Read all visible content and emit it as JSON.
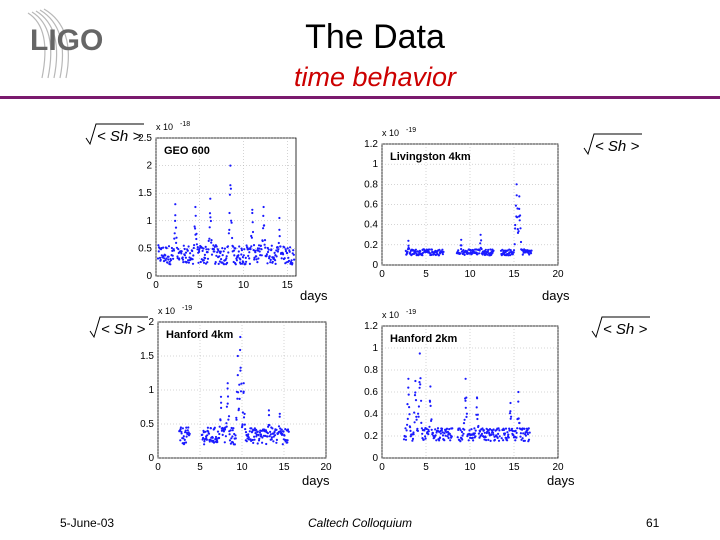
{
  "slide": {
    "logo_text": "LIGO",
    "title": "The Data",
    "subtitle": "time behavior",
    "footer_date": "5-June-03",
    "footer_center": "Caltech Colloquium",
    "footer_page": "61",
    "formula_label": "√< Sh >"
  },
  "colors": {
    "series": "#1a1aff",
    "accent_rule": "#7a1a6e",
    "subtitle": "#cc0000"
  },
  "chart_data": [
    {
      "type": "scatter",
      "title": "GEO 600",
      "xlabel": "days",
      "ylabel": "√< Sh >",
      "exponent": "x 10",
      "exponent_power": "-18",
      "xlim": [
        0,
        16
      ],
      "ylim": [
        0,
        2.5
      ],
      "xticks": [
        "0",
        "5",
        "10",
        "15"
      ],
      "yticks": [
        "0",
        "0.5",
        "1",
        "1.5",
        "2",
        "2.5"
      ],
      "series": [
        {
          "name": "GEO 600",
          "segments": [
            [
              0.2,
              15.8
            ]
          ],
          "base": 0.35,
          "spread": 0.35,
          "spikes": [
            [
              2.2,
              1.3
            ],
            [
              4.5,
              1.25
            ],
            [
              6.2,
              1.4
            ],
            [
              8.5,
              2.0
            ],
            [
              11,
              1.2
            ],
            [
              12.3,
              1.25
            ],
            [
              14.1,
              1.05
            ]
          ]
        }
      ]
    },
    {
      "type": "scatter",
      "title": "Livingston 4km",
      "xlabel": "days",
      "ylabel": "√< Sh >",
      "exponent": "x 10",
      "exponent_power": "-19",
      "xlim": [
        0,
        20
      ],
      "ylim": [
        0,
        1.2
      ],
      "xticks": [
        "0",
        "5",
        "10",
        "15",
        "20"
      ],
      "yticks": [
        "0",
        "0.2",
        "0.4",
        "0.6",
        "0.8",
        "1",
        "1.2"
      ],
      "series": [
        {
          "name": "Livingston 4km",
          "segments": [
            [
              2.7,
              7.0
            ],
            [
              8.5,
              12.7
            ],
            [
              13.5,
              17.0
            ]
          ],
          "base": 0.12,
          "spread": 0.06,
          "spikes": [
            [
              3.0,
              0.24
            ],
            [
              9.0,
              0.25
            ],
            [
              11.2,
              0.3
            ],
            [
              15.3,
              0.8
            ],
            [
              15.6,
              0.68
            ]
          ]
        }
      ]
    },
    {
      "type": "scatter",
      "title": "Hanford 4km",
      "xlabel": "days",
      "ylabel": "√< Sh >",
      "exponent": "x 10",
      "exponent_power": "-19",
      "xlim": [
        0,
        20
      ],
      "ylim": [
        0,
        2
      ],
      "xticks": [
        "0",
        "5",
        "10",
        "15",
        "20"
      ],
      "yticks": [
        "0",
        "0.5",
        "1",
        "1.5",
        "2"
      ],
      "series": [
        {
          "name": "Hanford 4km",
          "segments": [
            [
              2.5,
              3.8
            ],
            [
              5.2,
              15.6
            ]
          ],
          "base": 0.3,
          "spread": 0.25,
          "spikes": [
            [
              7.5,
              0.9
            ],
            [
              8.3,
              1.1
            ],
            [
              9.5,
              1.5
            ],
            [
              9.8,
              1.78
            ],
            [
              10.2,
              1.1
            ],
            [
              13.2,
              0.7
            ],
            [
              14.5,
              0.65
            ]
          ]
        }
      ]
    },
    {
      "type": "scatter",
      "title": "Hanford 2km",
      "xlabel": "days",
      "ylabel": "√< Sh >",
      "exponent": "x 10",
      "exponent_power": "-19",
      "xlim": [
        0,
        20
      ],
      "ylim": [
        0,
        1.2
      ],
      "xticks": [
        "0",
        "5",
        "10",
        "15",
        "20"
      ],
      "yticks": [
        "0",
        "0.2",
        "0.4",
        "0.6",
        "0.8",
        "1",
        "1.2"
      ],
      "series": [
        {
          "name": "Hanford 2km",
          "segments": [
            [
              2.5,
              8.0
            ],
            [
              8.6,
              13.4
            ],
            [
              13.6,
              16.8
            ]
          ],
          "base": 0.2,
          "spread": 0.12,
          "spikes": [
            [
              3.0,
              0.72
            ],
            [
              3.8,
              0.7
            ],
            [
              4.3,
              0.95
            ],
            [
              5.5,
              0.65
            ],
            [
              9.5,
              0.72
            ],
            [
              10.8,
              0.55
            ],
            [
              14.6,
              0.5
            ],
            [
              15.5,
              0.6
            ]
          ]
        }
      ]
    }
  ]
}
